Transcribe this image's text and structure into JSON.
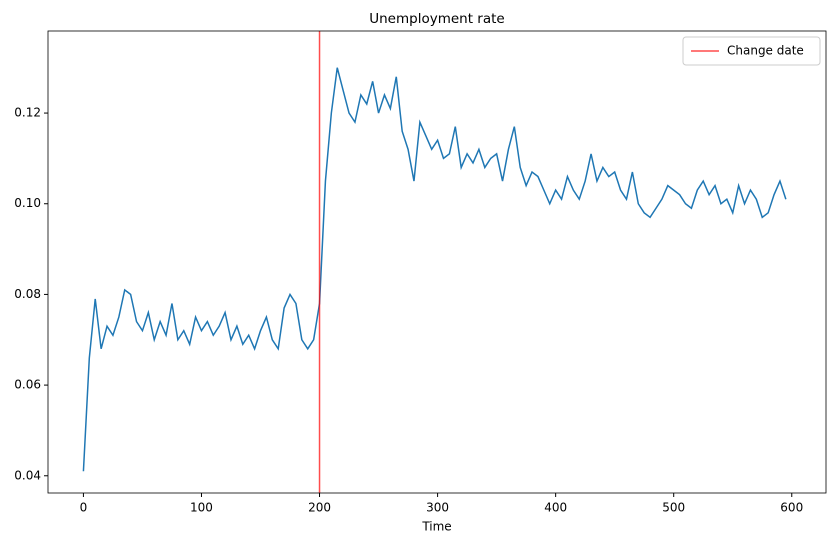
{
  "chart_data": {
    "type": "line",
    "title": "Unemployment rate",
    "x_label": "Time",
    "x": [
      0,
      5,
      10,
      15,
      20,
      25,
      30,
      35,
      40,
      45,
      50,
      55,
      60,
      65,
      70,
      75,
      80,
      85,
      90,
      95,
      100,
      105,
      110,
      115,
      120,
      125,
      130,
      135,
      140,
      145,
      150,
      155,
      160,
      165,
      170,
      175,
      180,
      185,
      190,
      195,
      200,
      205,
      210,
      215,
      220,
      225,
      230,
      235,
      240,
      245,
      250,
      255,
      260,
      265,
      270,
      275,
      280,
      285,
      290,
      295,
      300,
      305,
      310,
      315,
      320,
      325,
      330,
      335,
      340,
      345,
      350,
      355,
      360,
      365,
      370,
      375,
      380,
      385,
      390,
      395,
      400,
      405,
      410,
      415,
      420,
      425,
      430,
      435,
      440,
      445,
      450,
      455,
      460,
      465,
      470,
      475,
      480,
      485,
      490,
      495,
      500,
      505,
      510,
      515,
      520,
      525,
      530,
      535,
      540,
      545,
      550,
      555,
      560,
      565,
      570,
      575,
      580,
      585,
      590,
      595
    ],
    "series": [
      {
        "color": "#1f77b4",
        "values": [
          0.041,
          0.066,
          0.079,
          0.068,
          0.073,
          0.071,
          0.075,
          0.081,
          0.08,
          0.074,
          0.072,
          0.076,
          0.07,
          0.074,
          0.071,
          0.078,
          0.07,
          0.072,
          0.069,
          0.075,
          0.072,
          0.074,
          0.071,
          0.073,
          0.076,
          0.07,
          0.073,
          0.069,
          0.071,
          0.068,
          0.072,
          0.075,
          0.07,
          0.068,
          0.077,
          0.08,
          0.078,
          0.07,
          0.068,
          0.07,
          0.078,
          0.105,
          0.12,
          0.13,
          0.125,
          0.12,
          0.118,
          0.124,
          0.122,
          0.127,
          0.12,
          0.124,
          0.121,
          0.128,
          0.116,
          0.112,
          0.105,
          0.118,
          0.115,
          0.112,
          0.114,
          0.11,
          0.111,
          0.117,
          0.108,
          0.111,
          0.109,
          0.112,
          0.108,
          0.11,
          0.111,
          0.105,
          0.112,
          0.117,
          0.108,
          0.104,
          0.107,
          0.106,
          0.103,
          0.1,
          0.103,
          0.101,
          0.106,
          0.103,
          0.101,
          0.105,
          0.111,
          0.105,
          0.108,
          0.106,
          0.107,
          0.103,
          0.101,
          0.107,
          0.1,
          0.098,
          0.097,
          0.099,
          0.101,
          0.104,
          0.103,
          0.102,
          0.1,
          0.099,
          0.103,
          0.105,
          0.102,
          0.104,
          0.1,
          0.101,
          0.098,
          0.104,
          0.1,
          0.103,
          0.101,
          0.097,
          0.098,
          0.102,
          0.105,
          0.101
        ]
      }
    ],
    "vline": {
      "x": 200,
      "color": "#ff0000",
      "label": "Change date"
    },
    "xlim": [
      -30,
      629
    ],
    "xticks": [
      0,
      100,
      200,
      300,
      400,
      500,
      600
    ],
    "ylim": [
      0.0362,
      0.1381
    ],
    "yticks": [
      0.04,
      0.06,
      0.08,
      {
        "value": 0.1,
        "label": "0.10"
      },
      0.12
    ],
    "legend": "upper right"
  }
}
